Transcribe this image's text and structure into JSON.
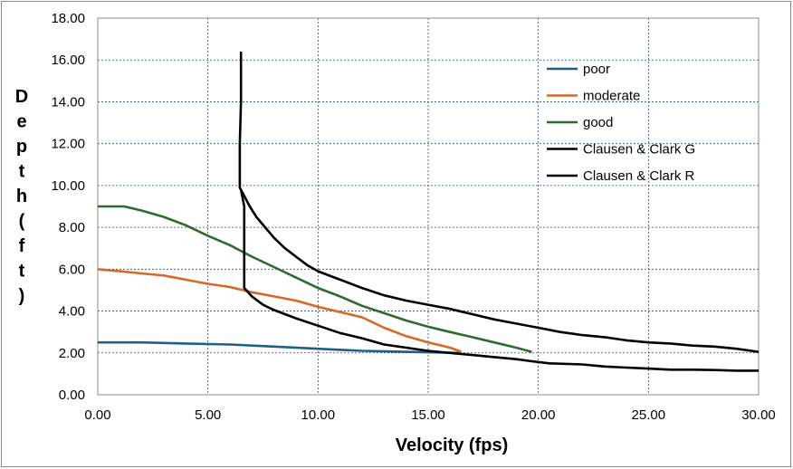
{
  "chart_data": {
    "type": "line",
    "xlabel": "Velocity (fps)",
    "ylabel": "Depth (ft)",
    "xlim": [
      0,
      30
    ],
    "ylim": [
      0,
      18
    ],
    "xticks": [
      "0.00",
      "5.00",
      "10.00",
      "15.00",
      "20.00",
      "25.00",
      "30.00"
    ],
    "yticks": [
      "0.00",
      "2.00",
      "4.00",
      "6.00",
      "8.00",
      "10.00",
      "12.00",
      "14.00",
      "16.00",
      "18.00"
    ],
    "grid": true,
    "legend_position": "right",
    "series": [
      {
        "name": "poor",
        "color": "#1f5f85",
        "points": [
          [
            0,
            2.5
          ],
          [
            2,
            2.5
          ],
          [
            4,
            2.45
          ],
          [
            6,
            2.4
          ],
          [
            8,
            2.3
          ],
          [
            10,
            2.2
          ],
          [
            12,
            2.1
          ],
          [
            14,
            2.05
          ],
          [
            16.5,
            2.0
          ]
        ]
      },
      {
        "name": "moderate",
        "color": "#d46a2a",
        "points": [
          [
            0,
            6.0
          ],
          [
            1,
            5.9
          ],
          [
            2,
            5.8
          ],
          [
            3,
            5.7
          ],
          [
            4,
            5.5
          ],
          [
            5,
            5.3
          ],
          [
            6,
            5.15
          ],
          [
            7,
            4.9
          ],
          [
            8,
            4.7
          ],
          [
            9,
            4.5
          ],
          [
            10,
            4.2
          ],
          [
            11,
            3.95
          ],
          [
            12,
            3.7
          ],
          [
            13,
            3.2
          ],
          [
            14,
            2.8
          ],
          [
            15,
            2.5
          ],
          [
            16,
            2.25
          ],
          [
            16.5,
            2.05
          ]
        ]
      },
      {
        "name": "good",
        "color": "#2e6b2e",
        "points": [
          [
            0,
            9.0
          ],
          [
            1.2,
            9.0
          ],
          [
            2,
            8.8
          ],
          [
            3,
            8.5
          ],
          [
            4,
            8.1
          ],
          [
            5,
            7.6
          ],
          [
            6,
            7.15
          ],
          [
            7,
            6.6
          ],
          [
            8,
            6.1
          ],
          [
            9,
            5.6
          ],
          [
            10,
            5.1
          ],
          [
            11,
            4.7
          ],
          [
            12,
            4.25
          ],
          [
            13,
            3.9
          ],
          [
            14,
            3.55
          ],
          [
            15,
            3.25
          ],
          [
            16,
            3.0
          ],
          [
            17,
            2.75
          ],
          [
            18,
            2.5
          ],
          [
            19,
            2.25
          ],
          [
            19.7,
            2.05
          ]
        ]
      },
      {
        "name": "Clausen & Clark G",
        "color": "#000000",
        "points": [
          [
            6.5,
            16.4
          ],
          [
            6.5,
            14.0
          ],
          [
            6.45,
            12.0
          ],
          [
            6.45,
            9.9
          ],
          [
            6.6,
            9.6
          ],
          [
            6.9,
            9.0
          ],
          [
            7.2,
            8.5
          ],
          [
            7.6,
            8.0
          ],
          [
            8.0,
            7.5
          ],
          [
            8.5,
            7.0
          ],
          [
            9.0,
            6.6
          ],
          [
            9.5,
            6.2
          ],
          [
            10.0,
            5.9
          ],
          [
            11,
            5.5
          ],
          [
            12,
            5.1
          ],
          [
            13,
            4.75
          ],
          [
            14,
            4.5
          ],
          [
            15,
            4.3
          ],
          [
            16,
            4.1
          ],
          [
            17,
            3.85
          ],
          [
            18,
            3.6
          ],
          [
            19,
            3.4
          ],
          [
            20,
            3.2
          ],
          [
            21,
            3.0
          ],
          [
            22,
            2.85
          ],
          [
            23,
            2.75
          ],
          [
            24,
            2.6
          ],
          [
            25,
            2.5
          ],
          [
            26,
            2.45
          ],
          [
            27,
            2.35
          ],
          [
            28,
            2.3
          ],
          [
            29,
            2.2
          ],
          [
            30,
            2.05
          ]
        ]
      },
      {
        "name": "Clausen & Clark R",
        "color": "#000000",
        "points": [
          [
            6.5,
            9.8
          ],
          [
            6.65,
            9.0
          ],
          [
            6.65,
            6.0
          ],
          [
            6.65,
            5.1
          ],
          [
            7.0,
            4.7
          ],
          [
            7.5,
            4.3
          ],
          [
            8.0,
            4.05
          ],
          [
            9.0,
            3.65
          ],
          [
            10.0,
            3.3
          ],
          [
            11,
            2.95
          ],
          [
            12,
            2.7
          ],
          [
            13,
            2.4
          ],
          [
            14,
            2.25
          ],
          [
            15,
            2.1
          ],
          [
            16,
            2.0
          ],
          [
            17,
            1.9
          ],
          [
            18,
            1.8
          ],
          [
            19,
            1.7
          ],
          [
            19.7,
            1.6
          ],
          [
            20.5,
            1.5
          ],
          [
            22,
            1.45
          ],
          [
            23,
            1.35
          ],
          [
            24,
            1.3
          ],
          [
            25,
            1.25
          ],
          [
            26,
            1.2
          ],
          [
            27,
            1.2
          ],
          [
            28,
            1.18
          ],
          [
            29,
            1.15
          ],
          [
            30,
            1.15
          ]
        ]
      }
    ]
  }
}
